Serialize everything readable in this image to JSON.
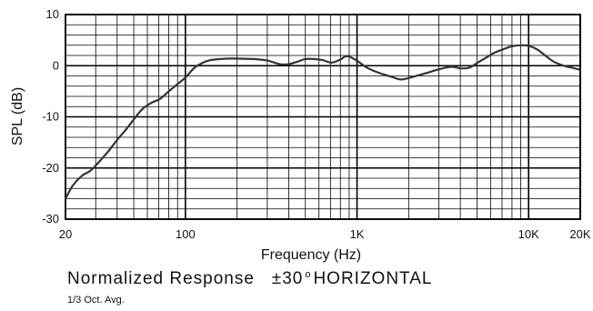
{
  "chart_data": {
    "type": "line",
    "xlabel": "Frequency (Hz)",
    "ylabel": "SPL (dB)",
    "xscale": "log",
    "xlim": [
      20,
      20000
    ],
    "ylim": [
      -30,
      10
    ],
    "xticks": [
      {
        "value": 20,
        "label": "20"
      },
      {
        "value": 100,
        "label": "100"
      },
      {
        "value": 1000,
        "label": "1K"
      },
      {
        "value": 10000,
        "label": "10K"
      },
      {
        "value": 20000,
        "label": "20K"
      }
    ],
    "yticks": [
      {
        "value": 10,
        "label": "10"
      },
      {
        "value": 0,
        "label": "0"
      },
      {
        "value": -10,
        "label": "-10"
      },
      {
        "value": -20,
        "label": "-20"
      },
      {
        "value": -30,
        "label": "-30"
      }
    ],
    "grid": true,
    "series": [
      {
        "color": "#333333",
        "points": [
          [
            20,
            -26
          ],
          [
            22,
            -23.5
          ],
          [
            25,
            -21.5
          ],
          [
            28,
            -20.5
          ],
          [
            32,
            -18.5
          ],
          [
            36,
            -16.5
          ],
          [
            40,
            -14.5
          ],
          [
            45,
            -12.5
          ],
          [
            50,
            -10.5
          ],
          [
            56,
            -8.5
          ],
          [
            63,
            -7.3
          ],
          [
            71,
            -6.5
          ],
          [
            80,
            -5
          ],
          [
            90,
            -3.6
          ],
          [
            100,
            -2.3
          ],
          [
            112,
            -0.5
          ],
          [
            125,
            0.5
          ],
          [
            140,
            1.1
          ],
          [
            160,
            1.3
          ],
          [
            180,
            1.4
          ],
          [
            200,
            1.4
          ],
          [
            250,
            1.3
          ],
          [
            300,
            1
          ],
          [
            355,
            0.3
          ],
          [
            400,
            0.3
          ],
          [
            450,
            0.8
          ],
          [
            500,
            1.3
          ],
          [
            560,
            1.3
          ],
          [
            630,
            1.1
          ],
          [
            710,
            0.6
          ],
          [
            800,
            1.2
          ],
          [
            850,
            1.8
          ],
          [
            900,
            1.8
          ],
          [
            950,
            1.4
          ],
          [
            1000,
            1
          ],
          [
            1120,
            -0.2
          ],
          [
            1250,
            -1
          ],
          [
            1400,
            -1.6
          ],
          [
            1600,
            -2.2
          ],
          [
            1800,
            -2.7
          ],
          [
            2000,
            -2.4
          ],
          [
            2500,
            -1.5
          ],
          [
            3000,
            -0.7
          ],
          [
            3550,
            -0.2
          ],
          [
            4000,
            -0.5
          ],
          [
            4500,
            -0.4
          ],
          [
            5000,
            0.5
          ],
          [
            5600,
            1.5
          ],
          [
            6300,
            2.5
          ],
          [
            7100,
            3.2
          ],
          [
            8000,
            3.8
          ],
          [
            9000,
            4
          ],
          [
            10000,
            3.9
          ],
          [
            11200,
            3.2
          ],
          [
            12500,
            2
          ],
          [
            14000,
            0.8
          ],
          [
            16000,
            0
          ],
          [
            18000,
            -0.4
          ],
          [
            20000,
            -0.8
          ]
        ]
      }
    ]
  },
  "caption": {
    "main_left": "Normalized Response",
    "main_value": "±30",
    "main_degree": "o",
    "main_right": "HORIZONTAL",
    "sub": "1/3 Oct. Avg."
  }
}
